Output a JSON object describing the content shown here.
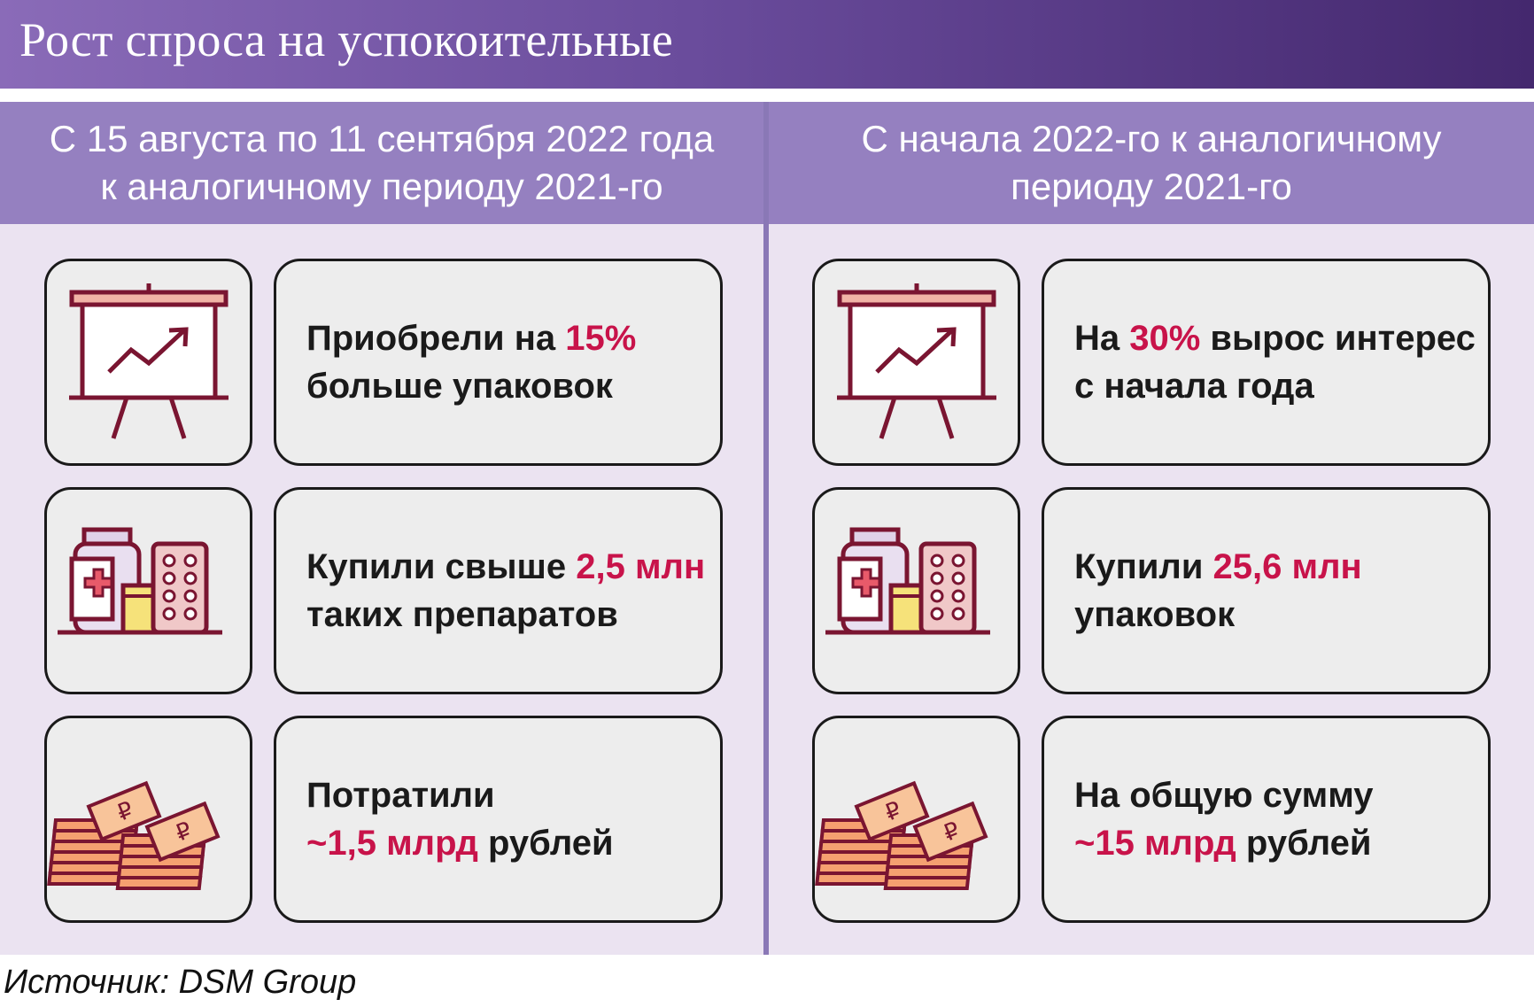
{
  "title": "Рост спроса на успокоительные",
  "left": {
    "header_line1": "С 15 августа по 11 сентября 2022 года",
    "header_line2": "к аналогичному периоду 2021-го",
    "rows": [
      {
        "icon": "presentation-chart-icon",
        "pre": "Приобрели на ",
        "hl": "15%",
        "line2": "больше упаковок"
      },
      {
        "icon": "medicine-icon",
        "pre": "Купили свыше ",
        "hl": "2,5 млн",
        "line2": "таких препаратов"
      },
      {
        "icon": "money-stacks-icon",
        "line1": "Потратили",
        "hl": "~1,5 млрд",
        "post": " рублей"
      }
    ]
  },
  "right": {
    "header_line1": "С начала 2022-го к аналогичному",
    "header_line2": "периоду 2021-го",
    "rows": [
      {
        "icon": "presentation-chart-icon",
        "pre": "На ",
        "hl": "30%",
        "post": " вырос интерес",
        "line2": "с начала года"
      },
      {
        "icon": "medicine-icon",
        "pre": "Купили ",
        "hl": "25,6 млн",
        "line2": "упаковок"
      },
      {
        "icon": "money-stacks-icon",
        "line1": "На общую сумму",
        "hl": "~15 млрд",
        "post": " рублей"
      }
    ]
  },
  "source": "Источник: DSM Group",
  "colors": {
    "accent": "#c8134a",
    "icon_stroke": "#7a1531",
    "header": "#9580c0",
    "panel_bg": "#ebe3f1"
  }
}
